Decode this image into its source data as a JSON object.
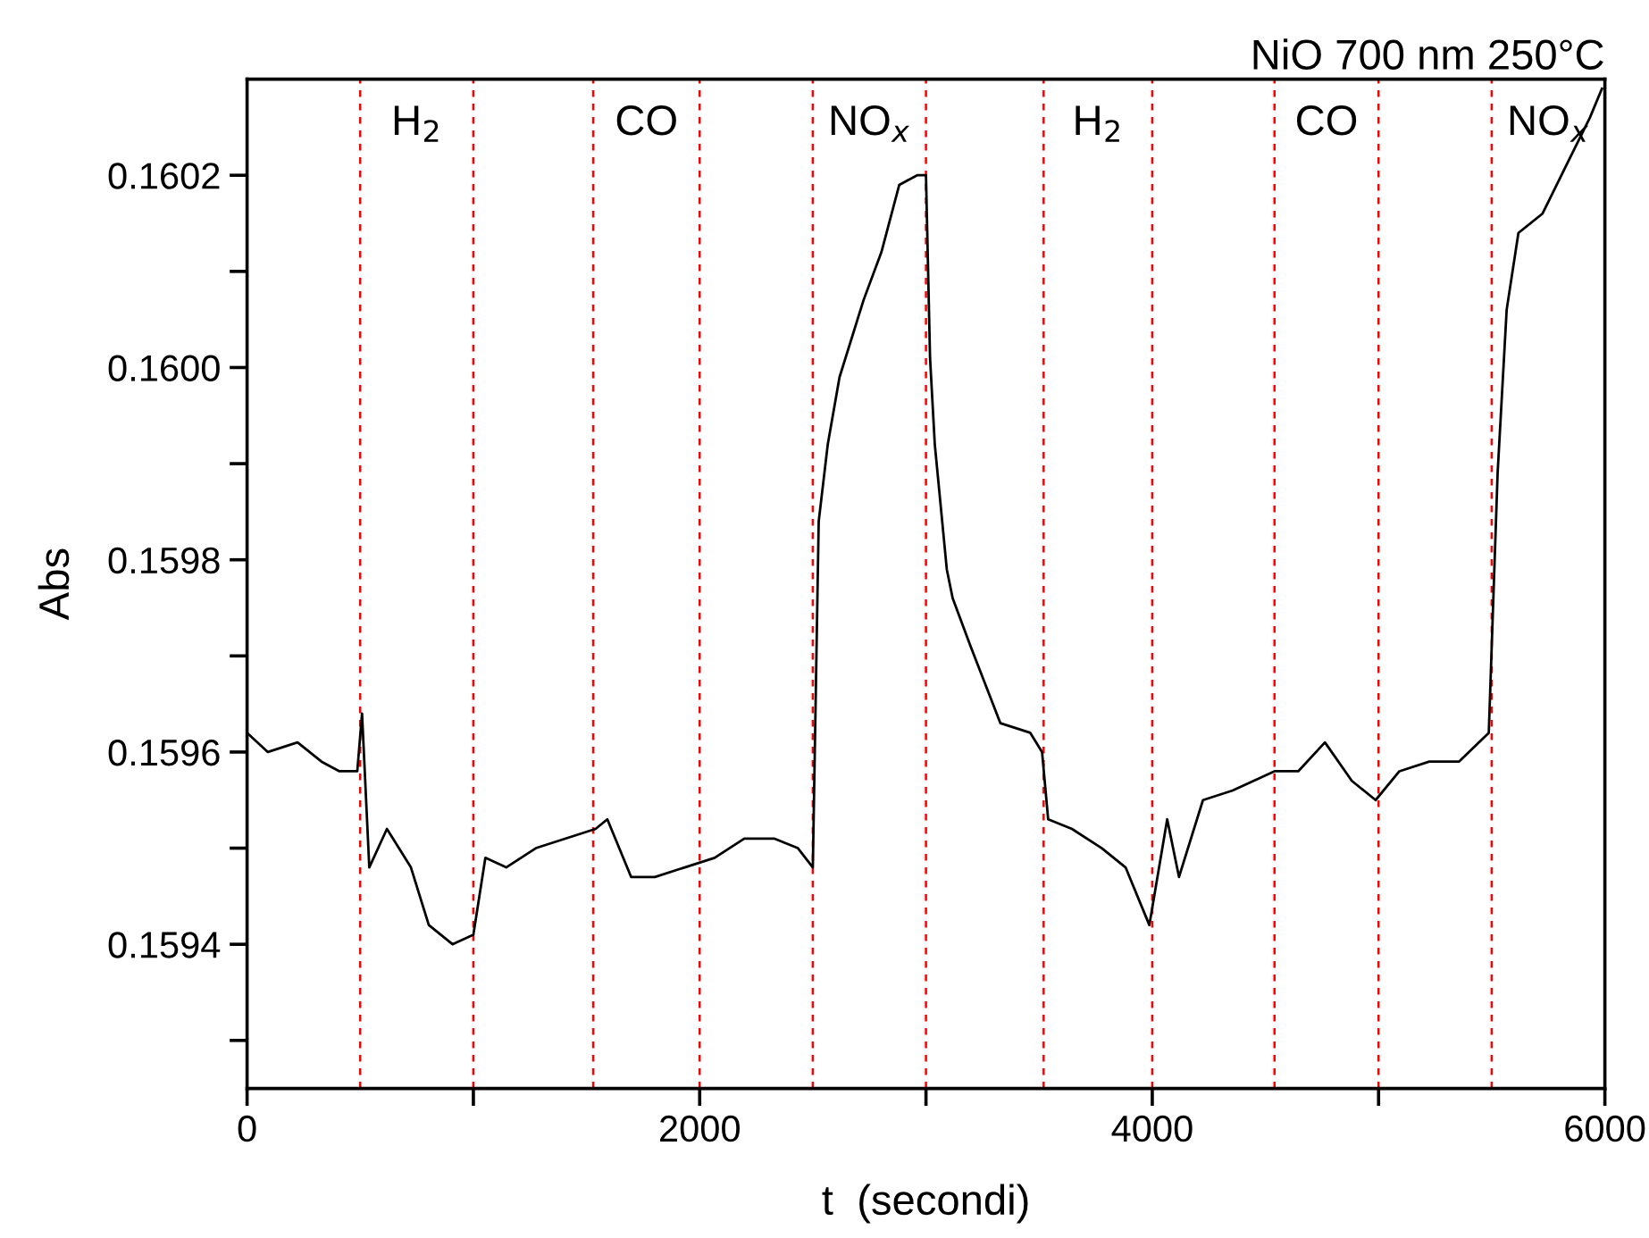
{
  "chart_data": {
    "type": "line",
    "title": "NiO 700 nm 250°C",
    "xlabel": "t  (secondi)",
    "ylabel": "Abs",
    "x": [
      0,
      92,
      223,
      329,
      408,
      487,
      508,
      540,
      618,
      724,
      803,
      908,
      1000,
      1053,
      1145,
      1276,
      1408,
      1540,
      1592,
      1697,
      1802,
      1934,
      2066,
      2197,
      2329,
      2434,
      2500,
      2526,
      2566,
      2618,
      2724,
      2803,
      2882,
      2961,
      3000,
      3018,
      3039,
      3092,
      3118,
      3197,
      3329,
      3461,
      3513,
      3540,
      3645,
      3777,
      3882,
      3987,
      4066,
      4118,
      4224,
      4355,
      4540,
      4645,
      4763,
      4882,
      4987,
      5092,
      5224,
      5355,
      5487,
      5526,
      5566,
      5618,
      5724,
      5829,
      5934,
      5987
    ],
    "series": [
      {
        "color": "#000000",
        "values": [
          0.15962,
          0.1596,
          0.15961,
          0.15959,
          0.15958,
          0.15958,
          0.15964,
          0.15948,
          0.15952,
          0.15948,
          0.15942,
          0.1594,
          0.15941,
          0.15949,
          0.15948,
          0.1595,
          0.15951,
          0.15952,
          0.15953,
          0.15947,
          0.15947,
          0.15948,
          0.15949,
          0.15951,
          0.15951,
          0.1595,
          0.15948,
          0.15984,
          0.15992,
          0.15999,
          0.16007,
          0.16012,
          0.16019,
          0.1602,
          0.1602,
          0.16001,
          0.15992,
          0.15979,
          0.15976,
          0.15971,
          0.15963,
          0.15962,
          0.1596,
          0.15953,
          0.15952,
          0.1595,
          0.15948,
          0.15942,
          0.15953,
          0.15947,
          0.15955,
          0.15956,
          0.15958,
          0.15958,
          0.15961,
          0.15957,
          0.15955,
          0.15958,
          0.15959,
          0.15959,
          0.15962,
          0.15989,
          0.16006,
          0.16014,
          0.16016,
          0.16021,
          0.16026,
          0.16029
        ]
      }
    ],
    "xlim": [
      0,
      6000
    ],
    "ylim": [
      0.15925,
      0.1603
    ],
    "xticks": [
      0,
      {
        "value": 1000,
        "label": null
      },
      2000,
      {
        "value": 3000,
        "label": null
      },
      4000,
      {
        "value": 5000,
        "label": null
      },
      6000
    ],
    "yticks": [
      {
        "value": 0.1593,
        "label": null
      },
      0.1594,
      {
        "value": 0.1595,
        "label": null
      },
      0.1596,
      {
        "value": 0.1597,
        "label": null
      },
      0.1598,
      {
        "value": 0.1599,
        "label": null
      },
      {
        "value": 0.16,
        "label": "0.1600"
      },
      {
        "value": 0.1601,
        "label": null
      },
      0.1602
    ],
    "ref_lines": [
      {
        "axis": "x",
        "value": 500,
        "color": "#ff0000",
        "line_style": "dashed"
      },
      {
        "axis": "x",
        "value": 1000,
        "color": "#ff0000",
        "line_style": "dashed"
      },
      {
        "axis": "x",
        "value": 1530,
        "color": "#ff0000",
        "line_style": "dashed"
      },
      {
        "axis": "x",
        "value": 2000,
        "color": "#ff0000",
        "line_style": "dashed"
      },
      {
        "axis": "x",
        "value": 2500,
        "color": "#ff0000",
        "line_style": "dashed"
      },
      {
        "axis": "x",
        "value": 3000,
        "color": "#ff0000",
        "line_style": "dashed"
      },
      {
        "axis": "x",
        "value": 3520,
        "color": "#ff0000",
        "line_style": "dashed"
      },
      {
        "axis": "x",
        "value": 4000,
        "color": "#ff0000",
        "line_style": "dashed"
      },
      {
        "axis": "x",
        "value": 4540,
        "color": "#ff0000",
        "line_style": "dashed"
      },
      {
        "axis": "x",
        "value": 5000,
        "color": "#ff0000",
        "line_style": "dashed"
      },
      {
        "axis": "x",
        "value": 5500,
        "color": "#ff0000",
        "line_style": "dashed"
      }
    ],
    "annotations": [
      "H$_{2}$",
      "CO",
      "NO$_{x}$",
      "H$_{2}$",
      "CO",
      "NO$_{x}$"
    ],
    "grid": false,
    "legend": false,
    "marker": "none",
    "line_style": "solid"
  }
}
